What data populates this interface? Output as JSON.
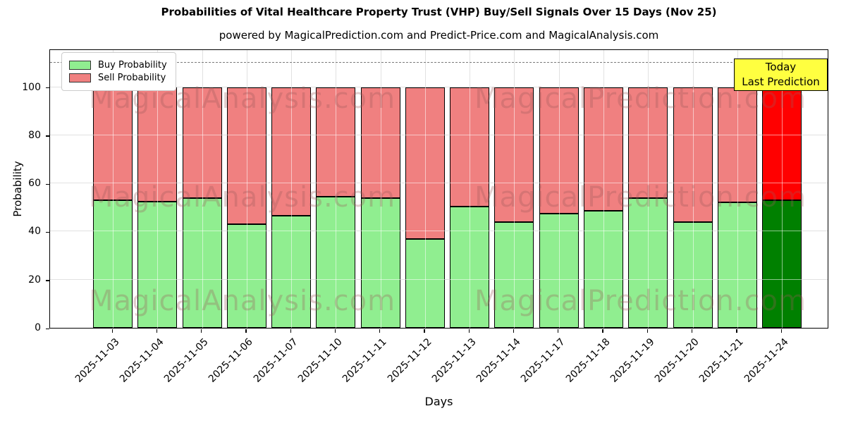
{
  "title": "Probabilities of Vital Healthcare Property Trust (VHP) Buy/Sell Signals Over 15 Days (Nov 25)",
  "subtitle": "powered by MagicalPrediction.com and Predict-Price.com and MagicalAnalysis.com",
  "legend": {
    "items": [
      {
        "label": "Buy Probability",
        "color": "#90ee90"
      },
      {
        "label": "Sell Probability",
        "color": "#f08080"
      }
    ]
  },
  "annotation": {
    "line1": "Today",
    "line2": "Last Prediction",
    "bg_color": "#ffff40"
  },
  "watermarks": {
    "left": "MagicalAnalysis.com",
    "right": "MagicalPrediction.com"
  },
  "axes": {
    "ylabel": "Probability",
    "xlabel": "Days",
    "yticks": [
      0,
      20,
      40,
      60,
      80,
      100
    ],
    "ylim": [
      0,
      116
    ],
    "dashed_y": 110,
    "grid": true
  },
  "chart_data": {
    "type": "bar",
    "stacked": true,
    "title": "Probabilities of Vital Healthcare Property Trust (VHP) Buy/Sell Signals Over 15 Days (Nov 25)",
    "xlabel": "Days",
    "ylabel": "Probability",
    "ylim": [
      0,
      116
    ],
    "legend_position": "upper left",
    "categories": [
      "2025-11-03",
      "2025-11-04",
      "2025-11-05",
      "2025-11-06",
      "2025-11-07",
      "2025-11-10",
      "2025-11-11",
      "2025-11-12",
      "2025-11-13",
      "2025-11-14",
      "2025-11-17",
      "2025-11-18",
      "2025-11-19",
      "2025-11-20",
      "2025-11-21",
      "2025-11-24"
    ],
    "series": [
      {
        "name": "Buy Probability",
        "color": "#90ee90",
        "values": [
          53,
          52.5,
          54,
          43,
          46.5,
          54.5,
          54,
          37,
          50.5,
          44,
          47.5,
          48.5,
          54,
          44,
          52,
          53
        ]
      },
      {
        "name": "Sell Probability",
        "color": "#f08080",
        "values": [
          47,
          47.5,
          46,
          57,
          53.5,
          45.5,
          46,
          63,
          49.5,
          56,
          52.5,
          51.5,
          46,
          56,
          48,
          47
        ]
      }
    ],
    "highlight_last_bar": {
      "category": "2025-11-24",
      "buy_color": "#008000",
      "sell_color": "#ff0000",
      "note": "Today / Last Prediction"
    },
    "edge_color": "#000000"
  }
}
